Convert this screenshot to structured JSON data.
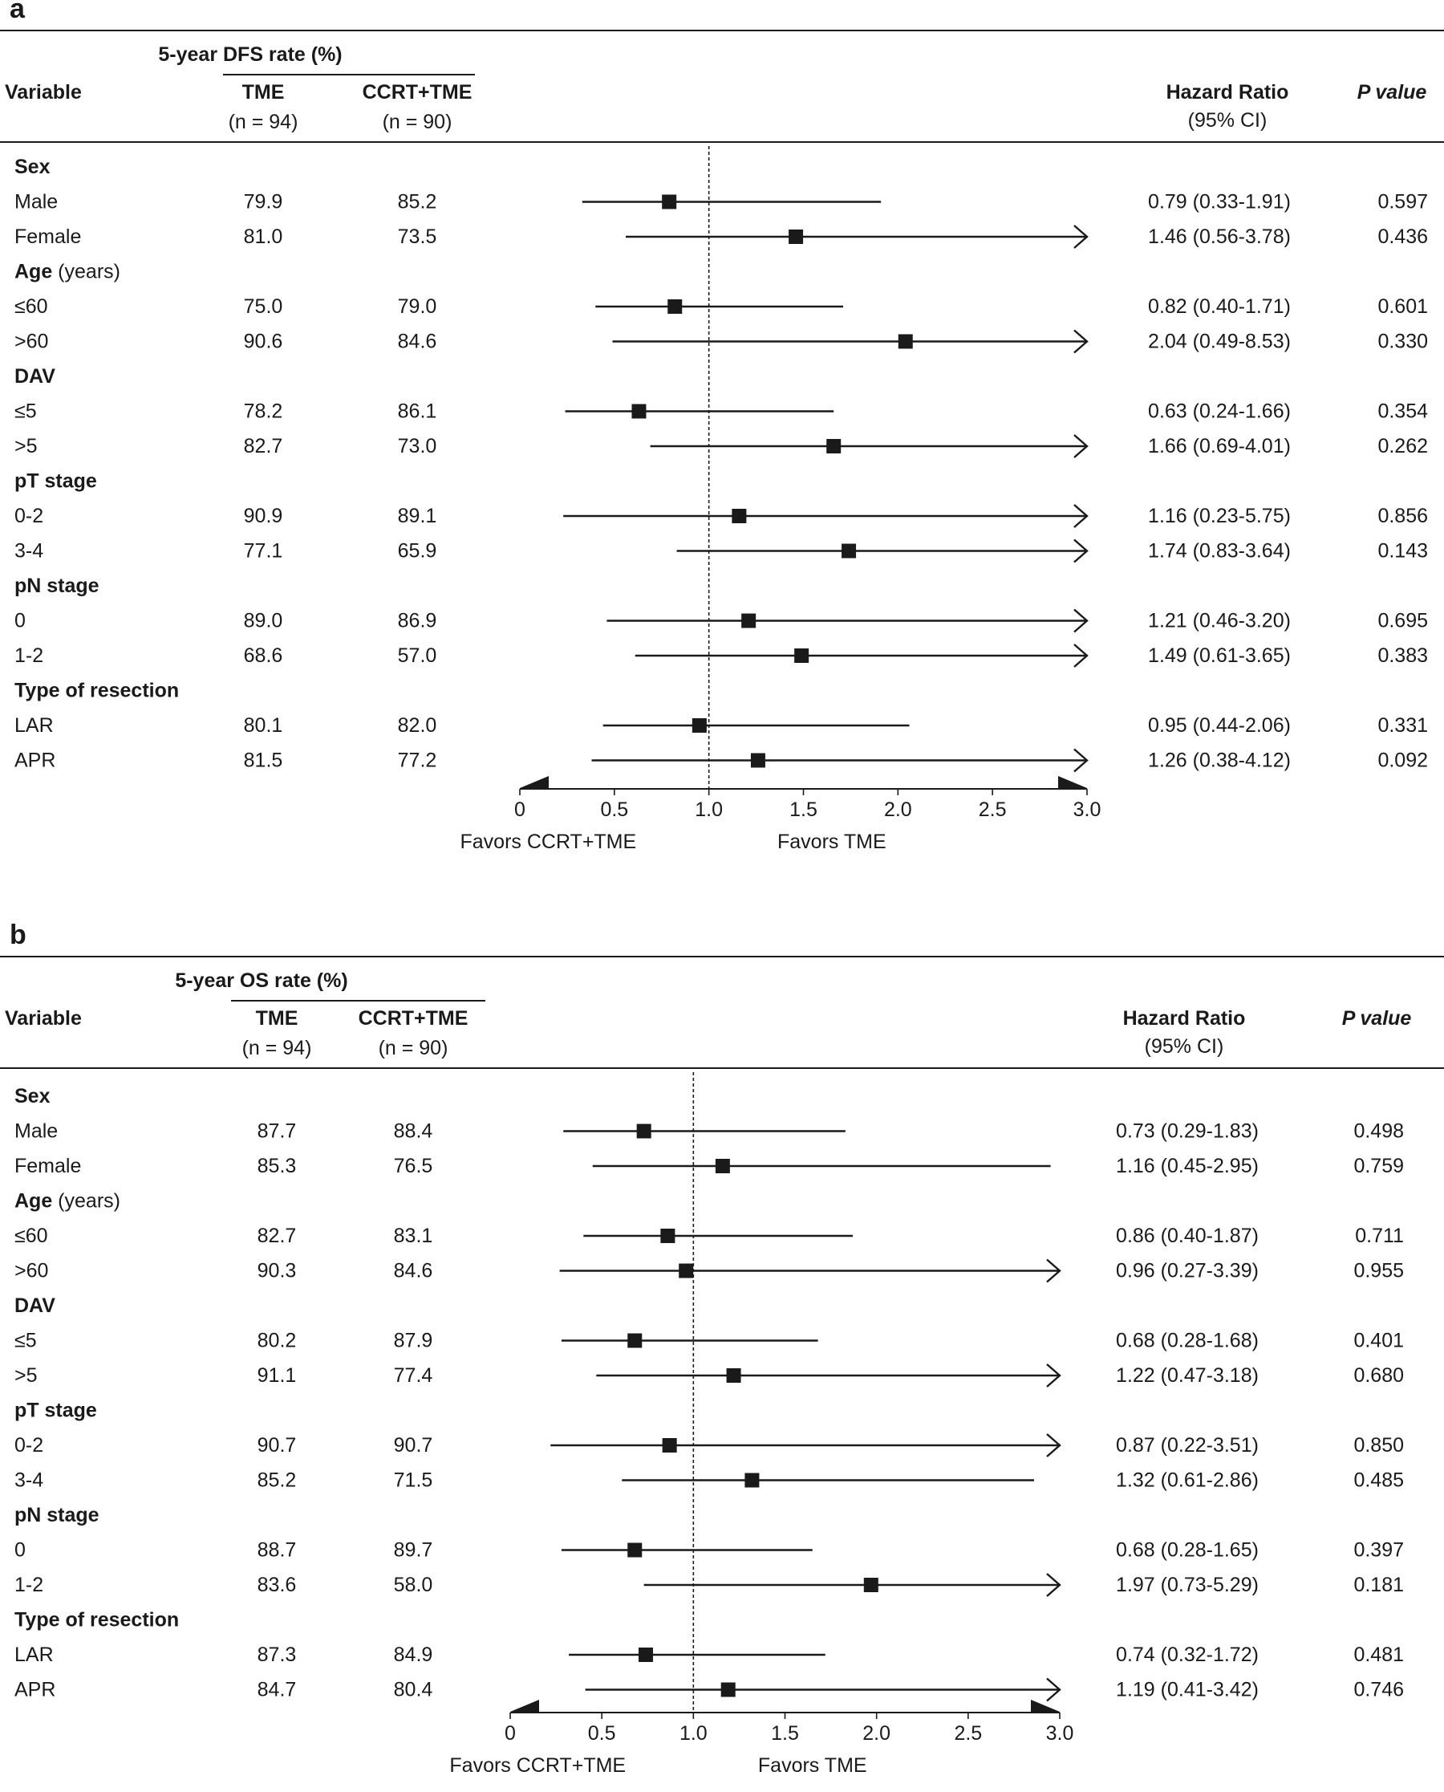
{
  "chart_data": [
    {
      "type": "forest",
      "panel_label": "a",
      "header": {
        "variable": "Variable",
        "rate_title": "5-year DFS rate (%)",
        "group1": "TME",
        "group1_n": "(n = 94)",
        "group2": "CCRT+TME",
        "group2_n": "(n = 90)",
        "hr_title": "Hazard Ratio",
        "hr_subtitle": "(95% CI)",
        "p_title": "P value"
      },
      "rows": [
        {
          "kind": "group",
          "label": "Sex"
        },
        {
          "kind": "data",
          "label": "Male",
          "g1": "79.9",
          "g2": "85.2",
          "hr": 0.79,
          "lo": 0.33,
          "hi": 1.91,
          "hr_text": "0.79 (0.33-1.91)",
          "p": "0.597"
        },
        {
          "kind": "data",
          "label": "Female",
          "g1": "81.0",
          "g2": "73.5",
          "hr": 1.46,
          "lo": 0.56,
          "hi": 3.78,
          "hr_text": "1.46 (0.56-3.78)",
          "p": "0.436"
        },
        {
          "kind": "group",
          "label": "Age",
          "suffix": " (years)"
        },
        {
          "kind": "data",
          "label": "≤60",
          "g1": "75.0",
          "g2": "79.0",
          "hr": 0.82,
          "lo": 0.4,
          "hi": 1.71,
          "hr_text": "0.82 (0.40-1.71)",
          "p": "0.601"
        },
        {
          "kind": "data",
          "label": ">60",
          "g1": "90.6",
          "g2": "84.6",
          "hr": 2.04,
          "lo": 0.49,
          "hi": 8.53,
          "hr_text": "2.04 (0.49-8.53)",
          "p": "0.330"
        },
        {
          "kind": "group",
          "label": "DAV"
        },
        {
          "kind": "data",
          "label": "≤5",
          "g1": "78.2",
          "g2": "86.1",
          "hr": 0.63,
          "lo": 0.24,
          "hi": 1.66,
          "hr_text": "0.63 (0.24-1.66)",
          "p": "0.354"
        },
        {
          "kind": "data",
          "label": ">5",
          "g1": "82.7",
          "g2": "73.0",
          "hr": 1.66,
          "lo": 0.69,
          "hi": 4.01,
          "hr_text": "1.66 (0.69-4.01)",
          "p": "0.262"
        },
        {
          "kind": "group",
          "label": "pT stage"
        },
        {
          "kind": "data",
          "label": "0-2",
          "g1": "90.9",
          "g2": "89.1",
          "hr": 1.16,
          "lo": 0.23,
          "hi": 5.75,
          "hr_text": "1.16 (0.23-5.75)",
          "p": "0.856"
        },
        {
          "kind": "data",
          "label": "3-4",
          "g1": "77.1",
          "g2": "65.9",
          "hr": 1.74,
          "lo": 0.83,
          "hi": 3.64,
          "hr_text": "1.74 (0.83-3.64)",
          "p": "0.143"
        },
        {
          "kind": "group",
          "label": "pN stage"
        },
        {
          "kind": "data",
          "label": "0",
          "g1": "89.0",
          "g2": "86.9",
          "hr": 1.21,
          "lo": 0.46,
          "hi": 3.2,
          "hr_text": "1.21 (0.46-3.20)",
          "p": "0.695"
        },
        {
          "kind": "data",
          "label": "1-2",
          "g1": "68.6",
          "g2": "57.0",
          "hr": 1.49,
          "lo": 0.61,
          "hi": 3.65,
          "hr_text": "1.49 (0.61-3.65)",
          "p": "0.383"
        },
        {
          "kind": "group",
          "label": "Type of resection"
        },
        {
          "kind": "data",
          "label": "LAR",
          "g1": "80.1",
          "g2": "82.0",
          "hr": 0.95,
          "lo": 0.44,
          "hi": 2.06,
          "hr_text": "0.95 (0.44-2.06)",
          "p": "0.331"
        },
        {
          "kind": "data",
          "label": "APR",
          "g1": "81.5",
          "g2": "77.2",
          "hr": 1.26,
          "lo": 0.38,
          "hi": 4.12,
          "hr_text": "1.26 (0.38-4.12)",
          "p": "0.092"
        }
      ],
      "xlim": [
        0,
        3.0
      ],
      "ticks": [
        0,
        0.5,
        1.0,
        1.5,
        2.0,
        2.5,
        3.0
      ],
      "tick_labels": [
        "0",
        "0.5",
        "1.0",
        "1.5",
        "2.0",
        "2.5",
        "3.0"
      ],
      "reference": 1.0,
      "favors_left": "Favors CCRT+TME",
      "favors_right": "Favors TME"
    },
    {
      "type": "forest",
      "panel_label": "b",
      "header": {
        "variable": "Variable",
        "rate_title": "5-year OS rate (%)",
        "group1": "TME",
        "group1_n": "(n = 94)",
        "group2": "CCRT+TME",
        "group2_n": "(n = 90)",
        "hr_title": "Hazard Ratio",
        "hr_subtitle": "(95% CI)",
        "p_title": "P value"
      },
      "rows": [
        {
          "kind": "group",
          "label": "Sex"
        },
        {
          "kind": "data",
          "label": "Male",
          "g1": "87.7",
          "g2": "88.4",
          "hr": 0.73,
          "lo": 0.29,
          "hi": 1.83,
          "hr_text": "0.73 (0.29-1.83)",
          "p": "0.498"
        },
        {
          "kind": "data",
          "label": "Female",
          "g1": "85.3",
          "g2": "76.5",
          "hr": 1.16,
          "lo": 0.45,
          "hi": 2.95,
          "hr_text": "1.16 (0.45-2.95)",
          "p": "0.759"
        },
        {
          "kind": "group",
          "label": "Age",
          "suffix": " (years)"
        },
        {
          "kind": "data",
          "label": "≤60",
          "g1": "82.7",
          "g2": "83.1",
          "hr": 0.86,
          "lo": 0.4,
          "hi": 1.87,
          "hr_text": "0.86 (0.40-1.87)",
          "p": "0.711"
        },
        {
          "kind": "data",
          "label": ">60",
          "g1": "90.3",
          "g2": "84.6",
          "hr": 0.96,
          "lo": 0.27,
          "hi": 3.39,
          "hr_text": "0.96 (0.27-3.39)",
          "p": "0.955"
        },
        {
          "kind": "group",
          "label": "DAV"
        },
        {
          "kind": "data",
          "label": "≤5",
          "g1": "80.2",
          "g2": "87.9",
          "hr": 0.68,
          "lo": 0.28,
          "hi": 1.68,
          "hr_text": "0.68 (0.28-1.68)",
          "p": "0.401"
        },
        {
          "kind": "data",
          "label": ">5",
          "g1": "91.1",
          "g2": "77.4",
          "hr": 1.22,
          "lo": 0.47,
          "hi": 3.18,
          "hr_text": "1.22 (0.47-3.18)",
          "p": "0.680"
        },
        {
          "kind": "group",
          "label": "pT stage"
        },
        {
          "kind": "data",
          "label": "0-2",
          "g1": "90.7",
          "g2": "90.7",
          "hr": 0.87,
          "lo": 0.22,
          "hi": 3.51,
          "hr_text": "0.87 (0.22-3.51)",
          "p": "0.850"
        },
        {
          "kind": "data",
          "label": "3-4",
          "g1": "85.2",
          "g2": "71.5",
          "hr": 1.32,
          "lo": 0.61,
          "hi": 2.86,
          "hr_text": "1.32 (0.61-2.86)",
          "p": "0.485"
        },
        {
          "kind": "group",
          "label": "pN stage"
        },
        {
          "kind": "data",
          "label": "0",
          "g1": "88.7",
          "g2": "89.7",
          "hr": 0.68,
          "lo": 0.28,
          "hi": 1.65,
          "hr_text": "0.68 (0.28-1.65)",
          "p": "0.397"
        },
        {
          "kind": "data",
          "label": "1-2",
          "g1": "83.6",
          "g2": "58.0",
          "hr": 1.97,
          "lo": 0.73,
          "hi": 5.29,
          "hr_text": "1.97 (0.73-5.29)",
          "p": "0.181"
        },
        {
          "kind": "group",
          "label": "Type of resection"
        },
        {
          "kind": "data",
          "label": "LAR",
          "g1": "87.3",
          "g2": "84.9",
          "hr": 0.74,
          "lo": 0.32,
          "hi": 1.72,
          "hr_text": "0.74 (0.32-1.72)",
          "p": "0.481"
        },
        {
          "kind": "data",
          "label": "APR",
          "g1": "84.7",
          "g2": "80.4",
          "hr": 1.19,
          "lo": 0.41,
          "hi": 3.42,
          "hr_text": "1.19 (0.41-3.42)",
          "p": "0.746"
        }
      ],
      "xlim": [
        0,
        3.0
      ],
      "ticks": [
        0,
        0.5,
        1.0,
        1.5,
        2.0,
        2.5,
        3.0
      ],
      "tick_labels": [
        "0",
        "0.5",
        "1.0",
        "1.5",
        "2.0",
        "2.5",
        "3.0"
      ],
      "reference": 1.0,
      "favors_left": "Favors CCRT+TME",
      "favors_right": "Favors TME"
    }
  ]
}
